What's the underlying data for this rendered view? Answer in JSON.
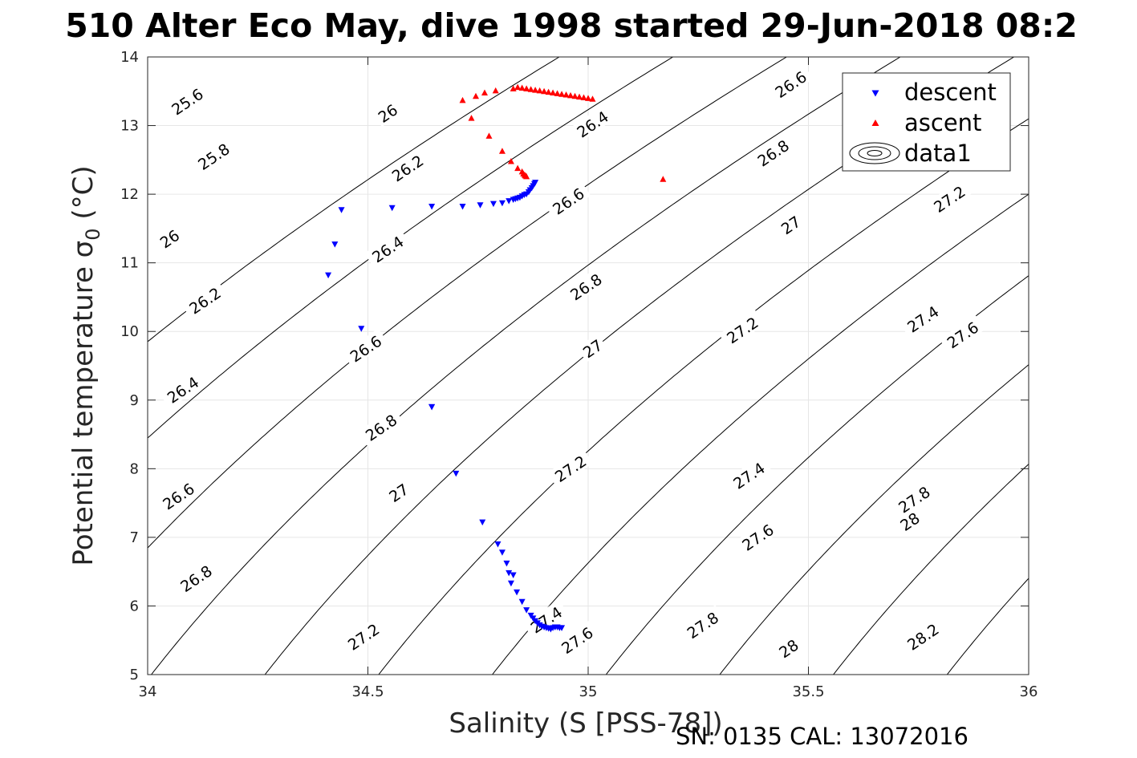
{
  "chart_data": {
    "type": "scatter",
    "title": "510 Alter Eco May, dive 1998 started 29-Jun-2018 08:2",
    "xlabel": "Salinity (S [PSS-78])",
    "ylabel_main": "Potential temperature σ",
    "ylabel_sub": "0",
    "ylabel_unit": " (°C)",
    "xlim": [
      34,
      36
    ],
    "ylim": [
      5,
      14
    ],
    "xticks": [
      34,
      34.5,
      35,
      35.5,
      36
    ],
    "yticks": [
      5,
      6,
      7,
      8,
      9,
      10,
      11,
      12,
      13,
      14
    ],
    "xtick_labels": [
      "34",
      "34.5",
      "35",
      "35.5",
      "36"
    ],
    "ytick_labels": [
      "5",
      "6",
      "7",
      "8",
      "9",
      "10",
      "11",
      "12",
      "13",
      "14"
    ],
    "grid": true,
    "legend_position": "top-right",
    "legend": [
      {
        "label": "descent",
        "marker": "triangle-down",
        "color": "#0000ff"
      },
      {
        "label": "ascent",
        "marker": "triangle-up",
        "color": "#ff0000"
      },
      {
        "label": "data1",
        "marker": "contour",
        "color": "#000000"
      }
    ],
    "series": [
      {
        "name": "descent",
        "marker": "triangle-down",
        "color": "#0000ff",
        "x": [
          34.41,
          34.425,
          34.44,
          34.485,
          34.555,
          34.645,
          34.715,
          34.755,
          34.785,
          34.805,
          34.82,
          34.83,
          34.835,
          34.84,
          34.845,
          34.85,
          34.855,
          34.86,
          34.865,
          34.868,
          34.872,
          34.875,
          34.878,
          34.88,
          34.645,
          34.645,
          34.7,
          34.76,
          34.795,
          34.805,
          34.815,
          34.82,
          34.825,
          34.83,
          34.838,
          34.85,
          34.86,
          34.87,
          34.875,
          34.88,
          34.885,
          34.89,
          34.895,
          34.9,
          34.905,
          34.91,
          34.915,
          34.92,
          34.925,
          34.93,
          34.935,
          34.94
        ],
        "y": [
          10.82,
          11.27,
          11.77,
          10.04,
          11.8,
          11.82,
          11.82,
          11.84,
          11.86,
          11.87,
          11.9,
          11.92,
          11.93,
          11.94,
          11.95,
          11.97,
          11.99,
          12.0,
          12.03,
          12.06,
          12.09,
          12.12,
          12.15,
          12.17,
          8.9,
          8.9,
          7.93,
          7.22,
          6.9,
          6.78,
          6.62,
          6.48,
          6.33,
          6.45,
          6.2,
          6.06,
          5.94,
          5.86,
          5.82,
          5.78,
          5.75,
          5.72,
          5.7,
          5.69,
          5.68,
          5.67,
          5.66,
          5.68,
          5.69,
          5.69,
          5.68,
          5.68
        ]
      },
      {
        "name": "ascent",
        "marker": "triangle-up",
        "color": "#ff0000",
        "x": [
          34.715,
          34.735,
          34.745,
          34.765,
          34.79,
          34.775,
          34.805,
          34.825,
          34.84,
          34.85,
          34.853,
          34.856,
          34.858,
          34.86,
          34.83,
          34.84,
          34.85,
          34.86,
          34.87,
          34.88,
          34.89,
          34.9,
          34.91,
          34.92,
          34.93,
          34.94,
          34.95,
          34.96,
          34.97,
          34.98,
          34.99,
          35.0,
          35.01,
          35.17
        ],
        "y": [
          13.37,
          13.11,
          13.43,
          13.48,
          13.51,
          12.85,
          12.63,
          12.48,
          12.38,
          12.33,
          12.3,
          12.28,
          12.27,
          12.26,
          13.54,
          13.56,
          13.55,
          13.54,
          13.53,
          13.52,
          13.51,
          13.5,
          13.49,
          13.48,
          13.47,
          13.46,
          13.45,
          13.44,
          13.43,
          13.42,
          13.41,
          13.4,
          13.39,
          12.22
        ]
      }
    ],
    "contours": {
      "name": "data1",
      "color": "#000000",
      "levels": [
        25.6,
        25.8,
        26,
        26.2,
        26.4,
        26.6,
        26.8,
        27,
        27.2,
        27.4,
        27.6,
        27.8,
        28,
        28.2
      ],
      "labels": [
        {
          "text": "25.6",
          "s": 34.09,
          "t": 13.35
        },
        {
          "text": "25.8",
          "s": 34.15,
          "t": 12.55
        },
        {
          "text": "26",
          "s": 34.05,
          "t": 11.35
        },
        {
          "text": "26.2",
          "s": 34.13,
          "t": 10.45
        },
        {
          "text": "26.4",
          "s": 34.08,
          "t": 9.15
        },
        {
          "text": "26.6",
          "s": 34.07,
          "t": 7.6
        },
        {
          "text": "26.8",
          "s": 34.11,
          "t": 6.4
        },
        {
          "text": "26",
          "s": 34.545,
          "t": 13.18
        },
        {
          "text": "26.2",
          "s": 34.59,
          "t": 12.38
        },
        {
          "text": "26.4",
          "s": 34.545,
          "t": 11.2
        },
        {
          "text": "26.6",
          "s": 34.495,
          "t": 9.75
        },
        {
          "text": "26.8",
          "s": 34.53,
          "t": 8.6
        },
        {
          "text": "27",
          "s": 34.57,
          "t": 7.65
        },
        {
          "text": "27.2",
          "s": 34.49,
          "t": 5.55
        },
        {
          "text": "26.4",
          "s": 35.01,
          "t": 13.02
        },
        {
          "text": "26.6",
          "s": 34.955,
          "t": 11.9
        },
        {
          "text": "26.8",
          "s": 34.995,
          "t": 10.65
        },
        {
          "text": "27",
          "s": 35.01,
          "t": 9.75
        },
        {
          "text": "27.2",
          "s": 34.96,
          "t": 8.0
        },
        {
          "text": "27.4",
          "s": 34.905,
          "t": 5.8
        },
        {
          "text": "27.6",
          "s": 34.975,
          "t": 5.5
        },
        {
          "text": "26.6",
          "s": 35.46,
          "t": 13.6
        },
        {
          "text": "26.8",
          "s": 35.42,
          "t": 12.6
        },
        {
          "text": "27",
          "s": 35.46,
          "t": 11.55
        },
        {
          "text": "27.2",
          "s": 35.35,
          "t": 10.02
        },
        {
          "text": "27.4",
          "s": 35.365,
          "t": 7.9
        },
        {
          "text": "27.6",
          "s": 35.385,
          "t": 7.0
        },
        {
          "text": "27.8",
          "s": 35.26,
          "t": 5.72
        },
        {
          "text": "28",
          "s": 35.455,
          "t": 5.38
        },
        {
          "text": "27.2",
          "s": 35.82,
          "t": 11.93
        },
        {
          "text": "27.4",
          "s": 35.76,
          "t": 10.18
        },
        {
          "text": "27.6",
          "s": 35.85,
          "t": 9.95
        },
        {
          "text": "27.8",
          "s": 35.74,
          "t": 7.55
        },
        {
          "text": "28",
          "s": 35.73,
          "t": 7.23
        },
        {
          "text": "28.2",
          "s": 35.76,
          "t": 5.55
        }
      ]
    }
  },
  "footer": {
    "calibration": "SN: 0135  CAL: 13072016"
  }
}
